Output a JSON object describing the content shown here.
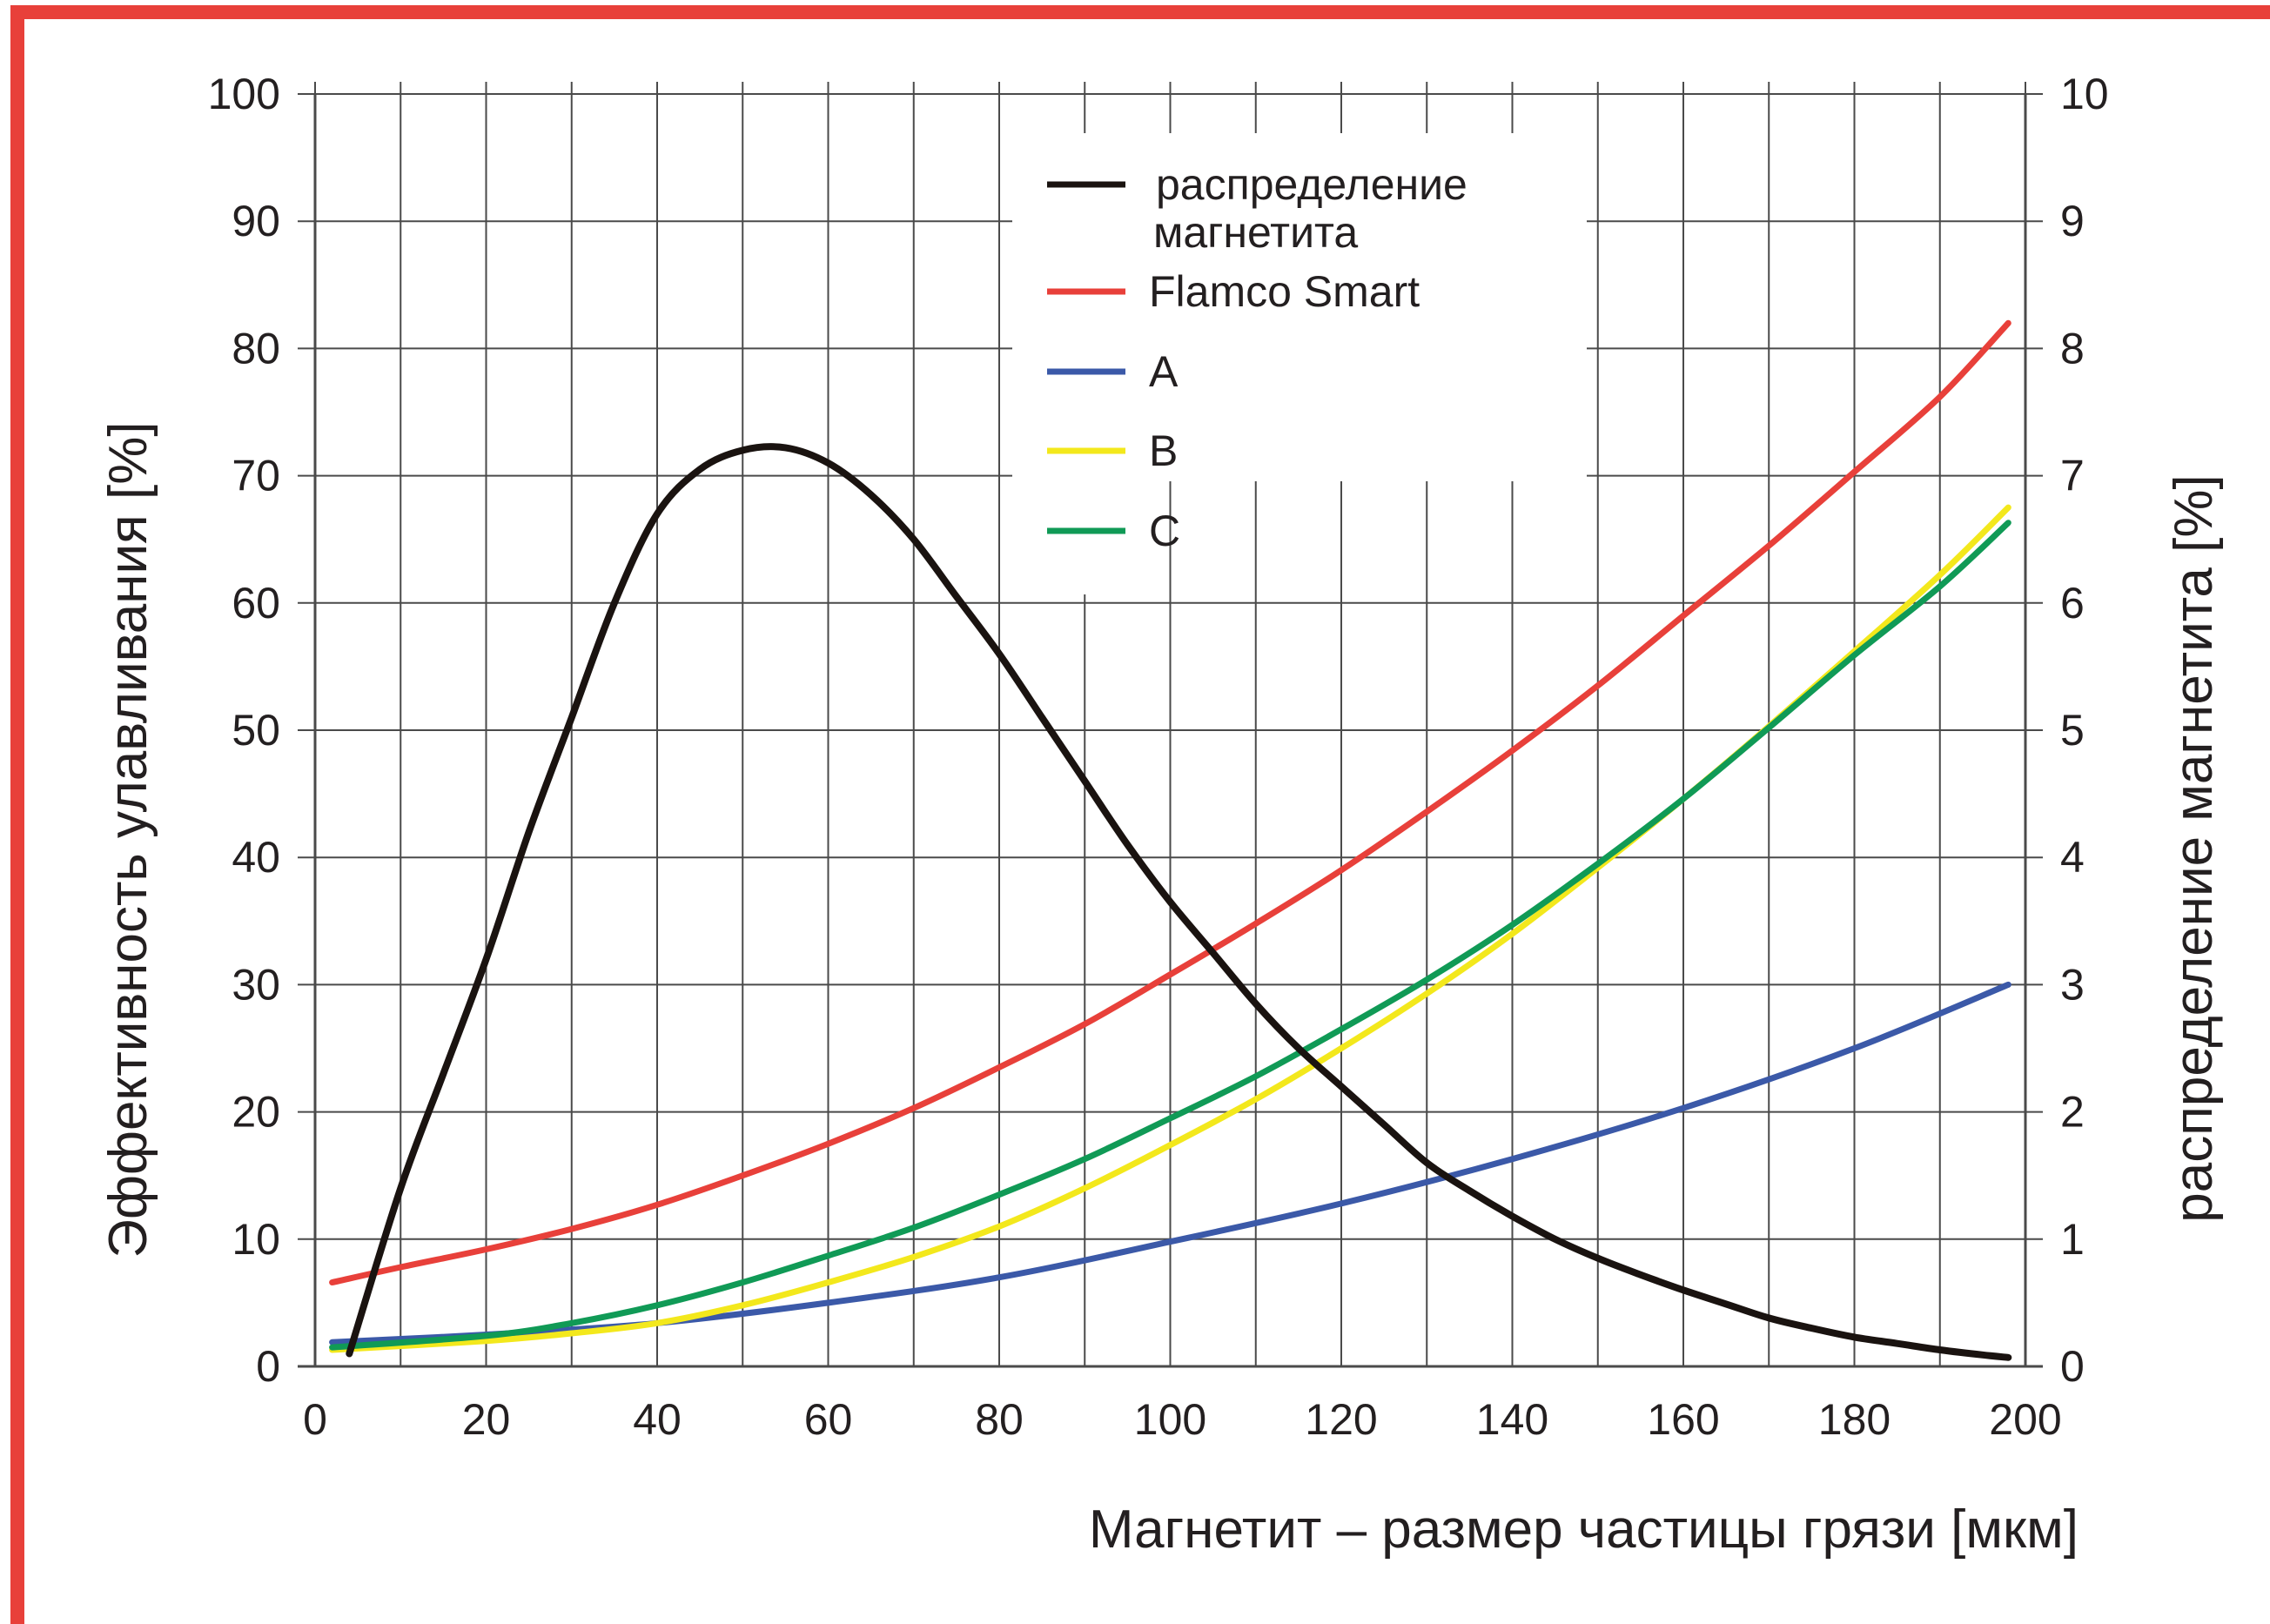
{
  "colors": {
    "frame": "#e8403a",
    "grid": "#4a4a4a",
    "text": "#231f20"
  },
  "chart_data": {
    "type": "line",
    "xlabel": "Магнетит – размер частицы грязи [мкм]",
    "ylabel": "Эффективность улавливания [%]",
    "y2label": "распределение магнетита [%]",
    "xlim": [
      0,
      200
    ],
    "ylim": [
      0,
      100
    ],
    "y2lim": [
      0,
      10
    ],
    "x_ticks": [
      "0",
      "20",
      "40",
      "60",
      "80",
      "100",
      "120",
      "140",
      "160",
      "180",
      "200"
    ],
    "y_ticks": [
      "0",
      "10",
      "20",
      "30",
      "40",
      "50",
      "60",
      "70",
      "80",
      "90",
      "100"
    ],
    "y2_ticks": [
      "0",
      "1",
      "2",
      "3",
      "4",
      "5",
      "6",
      "7",
      "8",
      "9",
      "10"
    ],
    "grid": true,
    "legend_position": "top-center",
    "series": [
      {
        "name": "распределение магнетита",
        "color": "#1a1310",
        "axis": "right",
        "points": [
          [
            4,
            0.1
          ],
          [
            10,
            1.4
          ],
          [
            15,
            2.3
          ],
          [
            20,
            3.2
          ],
          [
            25,
            4.2
          ],
          [
            30,
            5.1
          ],
          [
            35,
            6.0
          ],
          [
            40,
            6.7
          ],
          [
            45,
            7.05
          ],
          [
            50,
            7.2
          ],
          [
            55,
            7.22
          ],
          [
            60,
            7.1
          ],
          [
            65,
            6.85
          ],
          [
            70,
            6.5
          ],
          [
            75,
            6.05
          ],
          [
            80,
            5.6
          ],
          [
            85,
            5.1
          ],
          [
            90,
            4.6
          ],
          [
            95,
            4.1
          ],
          [
            100,
            3.65
          ],
          [
            105,
            3.25
          ],
          [
            110,
            2.85
          ],
          [
            115,
            2.5
          ],
          [
            120,
            2.2
          ],
          [
            125,
            1.9
          ],
          [
            130,
            1.6
          ],
          [
            135,
            1.38
          ],
          [
            140,
            1.18
          ],
          [
            145,
            1.0
          ],
          [
            150,
            0.85
          ],
          [
            155,
            0.72
          ],
          [
            160,
            0.6
          ],
          [
            165,
            0.49
          ],
          [
            170,
            0.38
          ],
          [
            175,
            0.3
          ],
          [
            180,
            0.23
          ],
          [
            185,
            0.18
          ],
          [
            190,
            0.13
          ],
          [
            195,
            0.09
          ],
          [
            198,
            0.07
          ]
        ]
      },
      {
        "name": "Flamco Smart",
        "color": "#e8403a",
        "axis": "left",
        "points": [
          [
            2,
            6.6
          ],
          [
            10,
            7.8
          ],
          [
            20,
            9.2
          ],
          [
            30,
            10.8
          ],
          [
            40,
            12.7
          ],
          [
            50,
            15.0
          ],
          [
            60,
            17.5
          ],
          [
            70,
            20.3
          ],
          [
            80,
            23.5
          ],
          [
            90,
            26.9
          ],
          [
            100,
            30.8
          ],
          [
            110,
            34.8
          ],
          [
            120,
            39.0
          ],
          [
            130,
            43.6
          ],
          [
            140,
            48.4
          ],
          [
            150,
            53.5
          ],
          [
            160,
            59.0
          ],
          [
            170,
            64.5
          ],
          [
            180,
            70.3
          ],
          [
            190,
            76.2
          ],
          [
            198,
            82.0
          ]
        ]
      },
      {
        "name": "A",
        "color": "#3b59a8",
        "axis": "left",
        "points": [
          [
            2,
            1.9
          ],
          [
            20,
            2.5
          ],
          [
            40,
            3.4
          ],
          [
            60,
            5.0
          ],
          [
            80,
            7.0
          ],
          [
            100,
            9.8
          ],
          [
            120,
            12.8
          ],
          [
            140,
            16.3
          ],
          [
            160,
            20.3
          ],
          [
            180,
            25.0
          ],
          [
            198,
            30.0
          ]
        ]
      },
      {
        "name": "B",
        "color": "#f3e81c",
        "axis": "left",
        "points": [
          [
            2,
            1.3
          ],
          [
            20,
            2.0
          ],
          [
            30,
            2.6
          ],
          [
            40,
            3.4
          ],
          [
            50,
            4.8
          ],
          [
            60,
            6.6
          ],
          [
            70,
            8.6
          ],
          [
            80,
            11.0
          ],
          [
            90,
            14.0
          ],
          [
            100,
            17.4
          ],
          [
            110,
            21.0
          ],
          [
            120,
            25.0
          ],
          [
            130,
            29.3
          ],
          [
            140,
            34.0
          ],
          [
            150,
            39.2
          ],
          [
            160,
            44.6
          ],
          [
            170,
            50.3
          ],
          [
            180,
            56.2
          ],
          [
            190,
            62.2
          ],
          [
            198,
            67.5
          ]
        ]
      },
      {
        "name": "C",
        "color": "#109a56",
        "axis": "left",
        "points": [
          [
            2,
            1.5
          ],
          [
            20,
            2.4
          ],
          [
            30,
            3.4
          ],
          [
            40,
            4.8
          ],
          [
            50,
            6.6
          ],
          [
            60,
            8.7
          ],
          [
            70,
            10.9
          ],
          [
            80,
            13.5
          ],
          [
            90,
            16.3
          ],
          [
            100,
            19.5
          ],
          [
            110,
            22.8
          ],
          [
            120,
            26.5
          ],
          [
            130,
            30.4
          ],
          [
            140,
            34.7
          ],
          [
            150,
            39.5
          ],
          [
            160,
            44.6
          ],
          [
            170,
            50.2
          ],
          [
            180,
            55.9
          ],
          [
            190,
            61.3
          ],
          [
            198,
            66.3
          ]
        ]
      }
    ],
    "legend": [
      "распределение магнетита",
      "Flamco Smart",
      "A",
      "B",
      "C"
    ]
  }
}
